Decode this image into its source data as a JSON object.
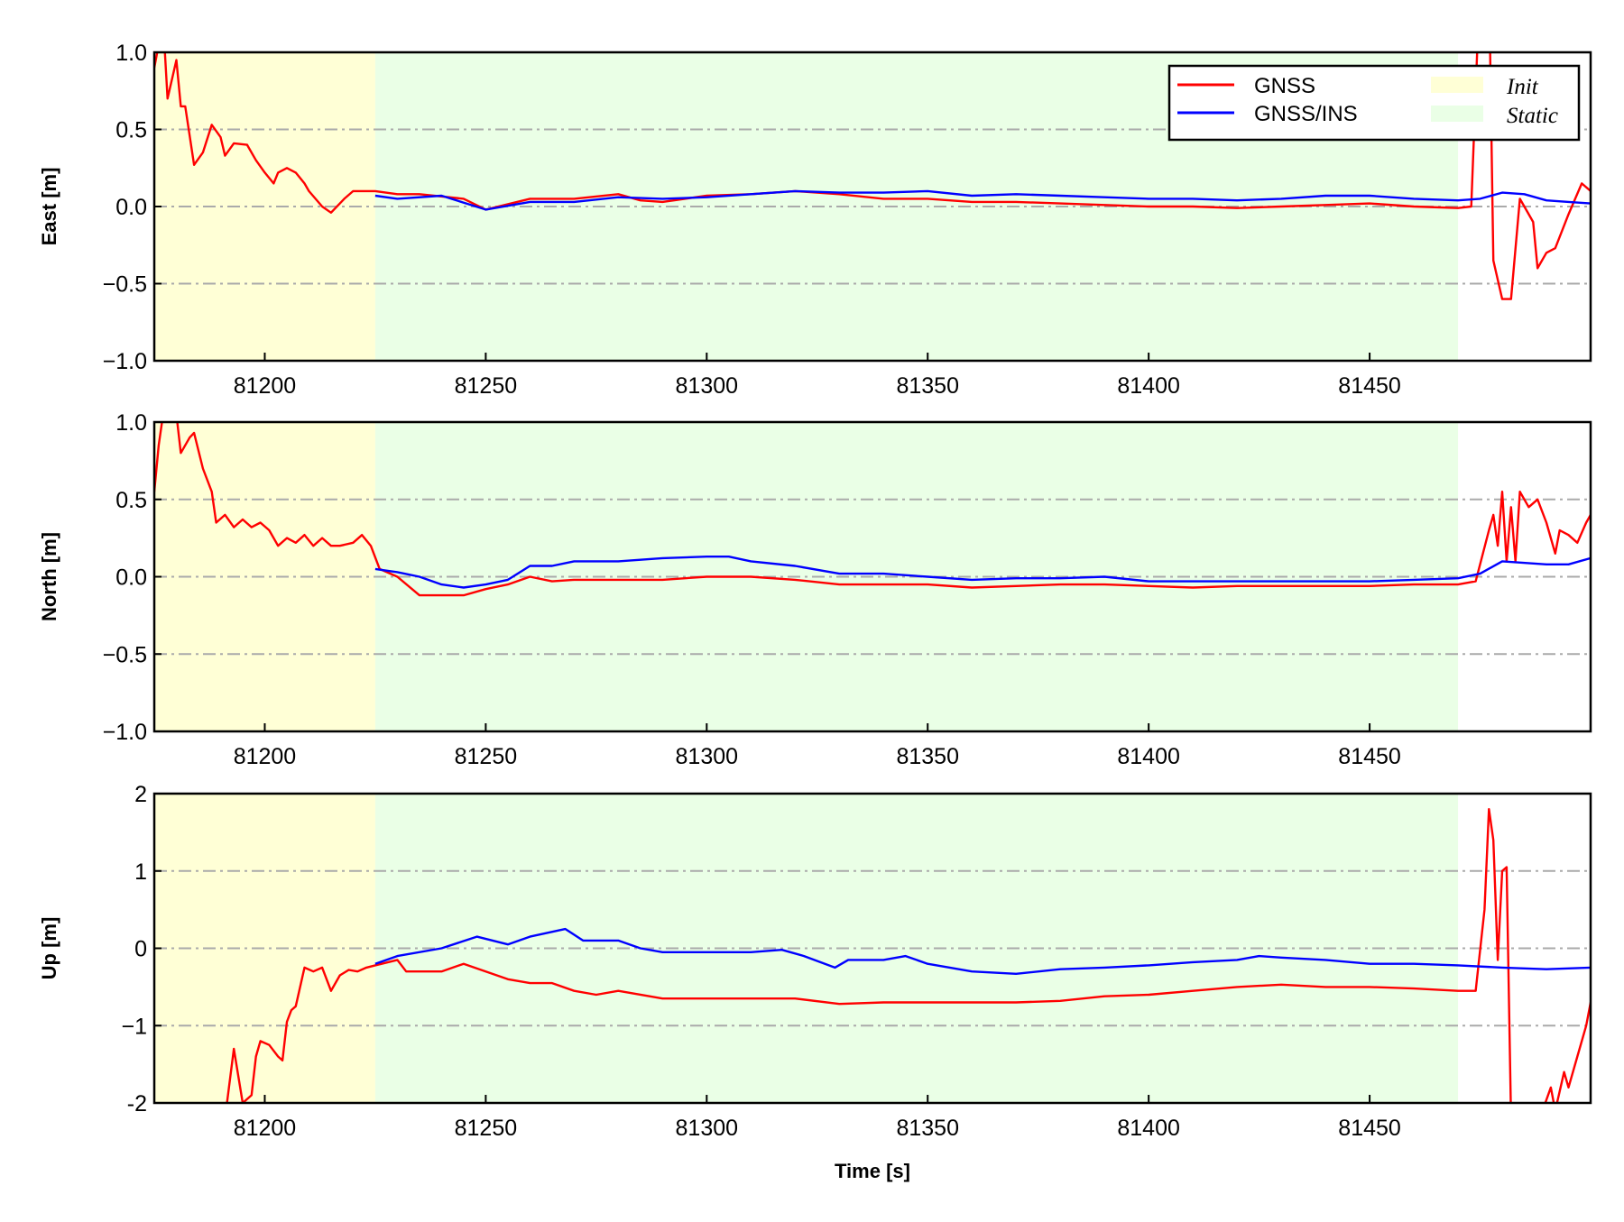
{
  "chart_data": {
    "type": "line",
    "xlabel": "Time [s]",
    "xlim": [
      81175,
      81500
    ],
    "xticks": [
      81200,
      81250,
      81300,
      81350,
      81400,
      81450
    ],
    "grid": "horizontal dash-dot at inner y ticks",
    "legend": {
      "placement": "top-right of first panel",
      "entries": [
        {
          "label": "GNSS",
          "kind": "line",
          "color": "#ff0000"
        },
        {
          "label": "GNSS/INS",
          "kind": "line",
          "color": "#0000ff"
        },
        {
          "label": "Init",
          "kind": "patch",
          "color": "#ffffd6"
        },
        {
          "label": "Static",
          "kind": "patch",
          "color": "#eaffe6"
        }
      ]
    },
    "regions": [
      {
        "label": "Init",
        "start": 81175,
        "end": 81225,
        "color": "#ffffd6"
      },
      {
        "label": "Static",
        "start": 81225,
        "end": 81470,
        "color": "#eaffe6"
      }
    ],
    "panels": [
      {
        "ylabel": "East [m]",
        "ylim": [
          -1.0,
          1.0
        ],
        "yticks": [
          "1.0",
          "0.5",
          "0.0",
          "−0.5",
          "−1.0"
        ],
        "ytick_values": [
          1.0,
          0.5,
          0.0,
          -0.5,
          -1.0
        ],
        "series": [
          {
            "name": "GNSS",
            "color": "#ff0000",
            "x": [
              81175,
              81177,
              81178,
              81180,
              81181,
              81182,
              81184,
              81186,
              81188,
              81190,
              81191,
              81193,
              81196,
              81198,
              81200,
              81202,
              81203,
              81205,
              81207,
              81209,
              81210,
              81213,
              81215,
              81218,
              81220,
              81225,
              81230,
              81235,
              81245,
              81250,
              81260,
              81270,
              81280,
              81285,
              81290,
              81300,
              81310,
              81320,
              81330,
              81340,
              81350,
              81360,
              81370,
              81380,
              81390,
              81400,
              81410,
              81420,
              81430,
              81440,
              81450,
              81460,
              81470,
              81473,
              81475,
              81477,
              81478,
              81480,
              81482,
              81484,
              81487,
              81488,
              81490,
              81492,
              81495,
              81498,
              81500
            ],
            "y": [
              0.9,
              1.2,
              0.7,
              0.95,
              0.65,
              0.65,
              0.27,
              0.35,
              0.53,
              0.45,
              0.33,
              0.41,
              0.4,
              0.3,
              0.22,
              0.15,
              0.22,
              0.25,
              0.22,
              0.15,
              0.1,
              0.0,
              -0.04,
              0.05,
              0.1,
              0.1,
              0.08,
              0.08,
              0.05,
              -0.02,
              0.05,
              0.05,
              0.08,
              0.04,
              0.03,
              0.07,
              0.08,
              0.1,
              0.08,
              0.05,
              0.05,
              0.03,
              0.03,
              0.02,
              0.01,
              0.0,
              0.0,
              -0.01,
              0.0,
              0.01,
              0.02,
              0.0,
              -0.01,
              0.0,
              1.5,
              1.5,
              -0.35,
              -0.6,
              -0.6,
              0.05,
              -0.1,
              -0.4,
              -0.3,
              -0.27,
              -0.05,
              0.15,
              0.1
            ]
          },
          {
            "name": "GNSS/INS",
            "color": "#0000ff",
            "x": [
              81225,
              81230,
              81240,
              81250,
              81260,
              81270,
              81280,
              81290,
              81300,
              81310,
              81320,
              81330,
              81340,
              81350,
              81360,
              81370,
              81380,
              81390,
              81400,
              81410,
              81420,
              81430,
              81440,
              81450,
              81460,
              81470,
              81475,
              81480,
              81485,
              81490,
              81495,
              81500
            ],
            "y": [
              0.07,
              0.05,
              0.07,
              -0.02,
              0.03,
              0.03,
              0.06,
              0.05,
              0.06,
              0.08,
              0.1,
              0.09,
              0.09,
              0.1,
              0.07,
              0.08,
              0.07,
              0.06,
              0.05,
              0.05,
              0.04,
              0.05,
              0.07,
              0.07,
              0.05,
              0.04,
              0.05,
              0.09,
              0.08,
              0.04,
              0.03,
              0.02
            ]
          }
        ]
      },
      {
        "ylabel": "North [m]",
        "ylim": [
          -1.0,
          1.0
        ],
        "yticks": [
          "1.0",
          "0.5",
          "0.0",
          "−0.5",
          "−1.0"
        ],
        "ytick_values": [
          1.0,
          0.5,
          0.0,
          -0.5,
          -1.0
        ],
        "series": [
          {
            "name": "GNSS",
            "color": "#ff0000",
            "x": [
              81175,
              81176,
              81177,
              81180,
              81181,
              81183,
              81184,
              81186,
              81188,
              81189,
              81191,
              81193,
              81195,
              81197,
              81199,
              81201,
              81203,
              81205,
              81207,
              81209,
              81211,
              81213,
              81215,
              81217,
              81220,
              81222,
              81224,
              81226,
              81230,
              81235,
              81240,
              81245,
              81250,
              81255,
              81260,
              81265,
              81270,
              81280,
              81290,
              81300,
              81310,
              81320,
              81330,
              81340,
              81350,
              81360,
              81370,
              81380,
              81390,
              81400,
              81410,
              81420,
              81430,
              81440,
              81450,
              81460,
              81470,
              81474,
              81477,
              81478,
              81479,
              81480,
              81481,
              81482,
              81483,
              81484,
              81486,
              81488,
              81490,
              81492,
              81493,
              81495,
              81497,
              81499,
              81500
            ],
            "y": [
              0.55,
              0.85,
              1.05,
              1.05,
              0.8,
              0.9,
              0.93,
              0.7,
              0.55,
              0.35,
              0.4,
              0.32,
              0.37,
              0.32,
              0.35,
              0.3,
              0.2,
              0.25,
              0.22,
              0.27,
              0.2,
              0.25,
              0.2,
              0.2,
              0.22,
              0.27,
              0.2,
              0.05,
              0.0,
              -0.12,
              -0.12,
              -0.12,
              -0.08,
              -0.05,
              0.0,
              -0.03,
              -0.02,
              -0.02,
              -0.02,
              0.0,
              0.0,
              -0.02,
              -0.05,
              -0.05,
              -0.05,
              -0.07,
              -0.06,
              -0.05,
              -0.05,
              -0.06,
              -0.07,
              -0.06,
              -0.06,
              -0.06,
              -0.06,
              -0.05,
              -0.05,
              -0.03,
              0.3,
              0.4,
              0.2,
              0.55,
              0.1,
              0.45,
              0.1,
              0.55,
              0.45,
              0.5,
              0.35,
              0.15,
              0.3,
              0.27,
              0.22,
              0.35,
              0.4
            ]
          },
          {
            "name": "GNSS/INS",
            "color": "#0000ff",
            "x": [
              81225,
              81230,
              81235,
              81240,
              81245,
              81250,
              81255,
              81260,
              81265,
              81270,
              81280,
              81290,
              81300,
              81305,
              81310,
              81320,
              81330,
              81340,
              81350,
              81360,
              81370,
              81380,
              81390,
              81400,
              81410,
              81420,
              81430,
              81440,
              81450,
              81460,
              81470,
              81475,
              81480,
              81490,
              81495,
              81500
            ],
            "y": [
              0.05,
              0.03,
              0.0,
              -0.05,
              -0.07,
              -0.05,
              -0.02,
              0.07,
              0.07,
              0.1,
              0.1,
              0.12,
              0.13,
              0.13,
              0.1,
              0.07,
              0.02,
              0.02,
              0.0,
              -0.02,
              -0.01,
              -0.01,
              0.0,
              -0.03,
              -0.03,
              -0.03,
              -0.03,
              -0.03,
              -0.03,
              -0.02,
              -0.01,
              0.02,
              0.1,
              0.08,
              0.08,
              0.12
            ]
          }
        ]
      },
      {
        "ylabel": "Up [m]",
        "ylim": [
          -2,
          2
        ],
        "yticks": [
          "2",
          "1",
          "0",
          "−1",
          "-2"
        ],
        "ytick_values": [
          2,
          1,
          0,
          -1,
          -2
        ],
        "series": [
          {
            "name": "GNSS",
            "color": "#ff0000",
            "x": [
              81191,
              81193,
              81195,
              81197,
              81198,
              81199,
              81201,
              81203,
              81204,
              81205,
              81206,
              81207,
              81209,
              81211,
              81213,
              81215,
              81217,
              81219,
              81221,
              81223,
              81225,
              81230,
              81232,
              81240,
              81245,
              81250,
              81255,
              81260,
              81265,
              81270,
              81275,
              81280,
              81290,
              81300,
              81310,
              81320,
              81330,
              81340,
              81350,
              81360,
              81370,
              81380,
              81390,
              81400,
              81410,
              81420,
              81430,
              81440,
              81450,
              81460,
              81470,
              81474,
              81476,
              81477,
              81478,
              81479,
              81480,
              81481,
              81482,
              81486,
              81491,
              81492,
              81494,
              81495,
              81497,
              81499,
              81500
            ],
            "y": [
              -2.2,
              -1.3,
              -2.0,
              -1.9,
              -1.4,
              -1.2,
              -1.25,
              -1.4,
              -1.45,
              -0.95,
              -0.8,
              -0.75,
              -0.25,
              -0.3,
              -0.25,
              -0.55,
              -0.35,
              -0.28,
              -0.3,
              -0.25,
              -0.22,
              -0.15,
              -0.3,
              -0.3,
              -0.2,
              -0.3,
              -0.4,
              -0.45,
              -0.45,
              -0.55,
              -0.6,
              -0.55,
              -0.65,
              -0.65,
              -0.65,
              -0.65,
              -0.72,
              -0.7,
              -0.7,
              -0.7,
              -0.7,
              -0.68,
              -0.62,
              -0.6,
              -0.55,
              -0.5,
              -0.47,
              -0.5,
              -0.5,
              -0.52,
              -0.55,
              -0.55,
              0.5,
              1.8,
              1.4,
              -0.15,
              1.0,
              1.05,
              -2.2,
              -2.6,
              -1.8,
              -2.1,
              -1.6,
              -1.8,
              -1.4,
              -1.0,
              -0.7
            ]
          },
          {
            "name": "GNSS/INS",
            "color": "#0000ff",
            "x": [
              81225,
              81230,
              81240,
              81248,
              81255,
              81260,
              81268,
              81272,
              81280,
              81285,
              81290,
              81300,
              81310,
              81317,
              81322,
              81329,
              81332,
              81340,
              81345,
              81350,
              81360,
              81370,
              81380,
              81390,
              81400,
              81410,
              81420,
              81425,
              81430,
              81440,
              81450,
              81460,
              81470,
              81480,
              81490,
              81500
            ],
            "y": [
              -0.2,
              -0.1,
              0.0,
              0.15,
              0.05,
              0.15,
              0.25,
              0.1,
              0.1,
              0.0,
              -0.05,
              -0.05,
              -0.05,
              -0.02,
              -0.1,
              -0.25,
              -0.15,
              -0.15,
              -0.1,
              -0.2,
              -0.3,
              -0.33,
              -0.27,
              -0.25,
              -0.22,
              -0.18,
              -0.15,
              -0.1,
              -0.12,
              -0.15,
              -0.2,
              -0.2,
              -0.22,
              -0.25,
              -0.27,
              -0.25
            ]
          }
        ]
      }
    ]
  }
}
